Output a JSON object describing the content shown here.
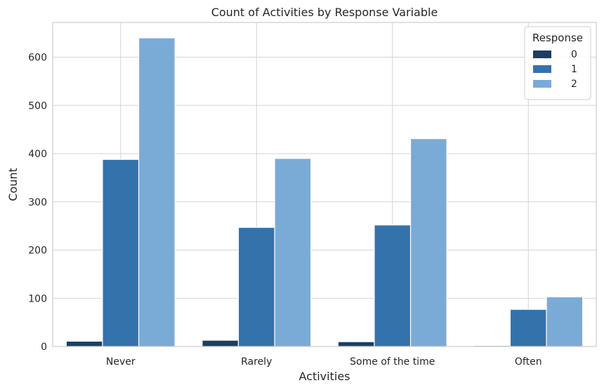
{
  "chart_data": {
    "type": "bar",
    "title": "Count of Activities by Response Variable",
    "xlabel": "Activities",
    "ylabel": "Count",
    "categories": [
      "Never",
      "Rarely",
      "Some of the time",
      "Often"
    ],
    "series": [
      {
        "name": "0",
        "values": [
          11,
          13,
          10,
          2
        ],
        "color": "#1b3f63"
      },
      {
        "name": "1",
        "values": [
          388,
          247,
          252,
          77
        ],
        "color": "#3472ab"
      },
      {
        "name": "2",
        "values": [
          640,
          390,
          431,
          103
        ],
        "color": "#7aabd7"
      }
    ],
    "ylim": [
      0,
      672
    ],
    "yticks": [
      0,
      100,
      200,
      300,
      400,
      500,
      600
    ],
    "grid": true,
    "legend": {
      "title": "Response",
      "placement": "top-right"
    }
  }
}
